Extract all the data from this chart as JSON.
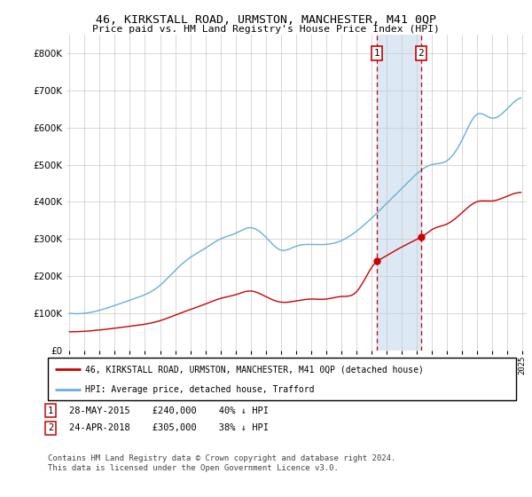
{
  "title": "46, KIRKSTALL ROAD, URMSTON, MANCHESTER, M41 0QP",
  "subtitle": "Price paid vs. HM Land Registry's House Price Index (HPI)",
  "legend_property": "46, KIRKSTALL ROAD, URMSTON, MANCHESTER, M41 0QP (detached house)",
  "legend_hpi": "HPI: Average price, detached house, Trafford",
  "footnote": "Contains HM Land Registry data © Crown copyright and database right 2024.\nThis data is licensed under the Open Government Licence v3.0.",
  "sale1_date": 2015.38,
  "sale1_price": 240000,
  "sale1_label": "1",
  "sale1_text": "28-MAY-2015    £240,000    40% ↓ HPI",
  "sale2_date": 2018.29,
  "sale2_price": 305000,
  "sale2_label": "2",
  "sale2_text": "24-APR-2018    £305,000    38% ↓ HPI",
  "xlim": [
    1994.8,
    2025.3
  ],
  "ylim": [
    0,
    850000
  ],
  "yticks": [
    0,
    100000,
    200000,
    300000,
    400000,
    500000,
    600000,
    700000,
    800000
  ],
  "hpi_color": "#6baed6",
  "property_color": "#cc0000",
  "shade_color": "#dce9f5",
  "vline_color": "#cc0000",
  "background_color": "#ffffff",
  "hpi_anchors_years": [
    1995,
    1997,
    1999,
    2001,
    2002,
    2003,
    2004,
    2005,
    2006,
    2007,
    2008,
    2009,
    2010,
    2011,
    2012,
    2013,
    2014,
    2015,
    2016,
    2017,
    2018,
    2019,
    2020,
    2021,
    2022,
    2023,
    2024,
    2025
  ],
  "hpi_anchors_vals": [
    100000,
    108000,
    135000,
    175000,
    215000,
    250000,
    275000,
    300000,
    315000,
    330000,
    305000,
    270000,
    280000,
    285000,
    285000,
    295000,
    320000,
    355000,
    395000,
    435000,
    475000,
    500000,
    510000,
    565000,
    635000,
    625000,
    650000,
    680000
  ],
  "prop_anchors_years": [
    1995,
    1997,
    1999,
    2001,
    2002,
    2003,
    2004,
    2005,
    2006,
    2007,
    2008,
    2009,
    2010,
    2011,
    2012,
    2013,
    2014,
    2015.38,
    2015.5,
    2016,
    2017,
    2018.29,
    2018.5,
    2019,
    2020,
    2021,
    2022,
    2023,
    2024,
    2025
  ],
  "prop_anchors_vals": [
    50000,
    55000,
    65000,
    80000,
    95000,
    110000,
    125000,
    140000,
    150000,
    160000,
    145000,
    130000,
    133000,
    138000,
    138000,
    145000,
    157000,
    240000,
    243000,
    255000,
    278000,
    305000,
    310000,
    325000,
    340000,
    370000,
    400000,
    402000,
    415000,
    425000
  ]
}
